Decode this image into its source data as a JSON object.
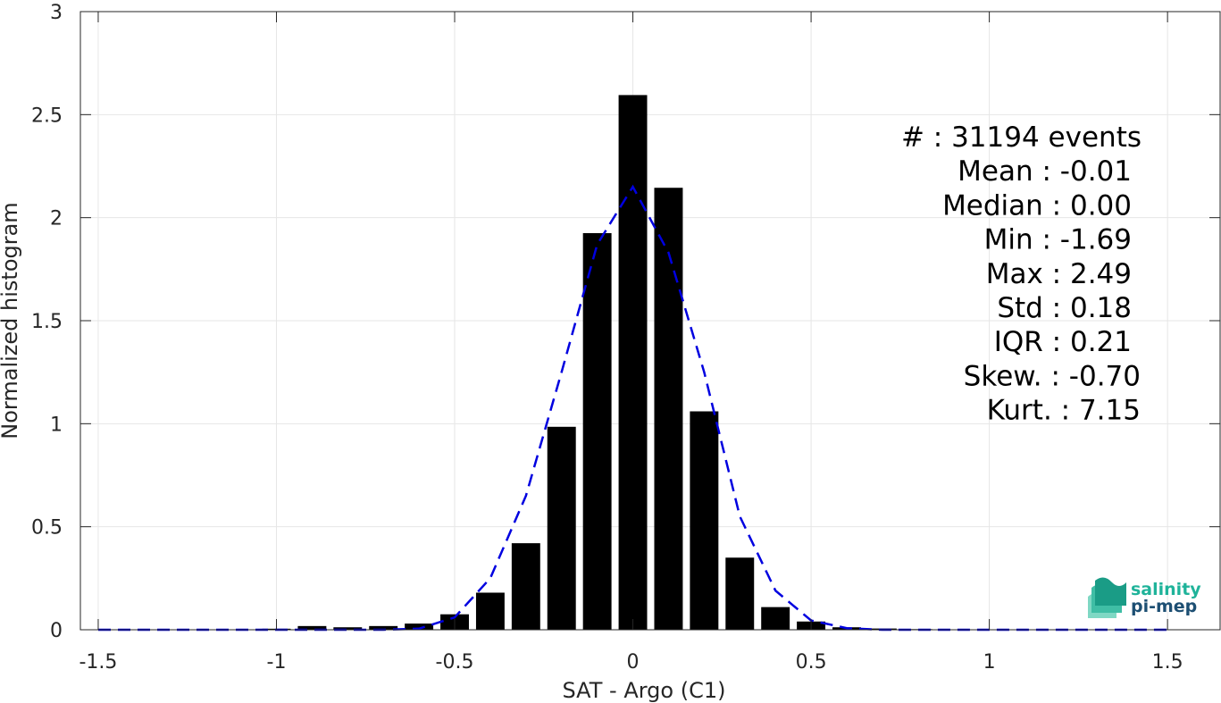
{
  "chart_data": {
    "type": "bar",
    "title": "",
    "xlabel": "SAT - Argo (C1)",
    "ylabel": "Normalized histogram",
    "xlim": [
      -1.55,
      1.65
    ],
    "ylim": [
      0,
      3
    ],
    "xticks": [
      -1.5,
      -1,
      -0.5,
      0,
      0.5,
      1,
      1.5
    ],
    "xtick_labels": [
      "-1.5",
      "-1",
      "-0.5",
      "0",
      "0.5",
      "1",
      "1.5"
    ],
    "yticks": [
      0,
      0.5,
      1,
      1.5,
      2,
      2.5,
      3
    ],
    "ytick_labels": [
      "0",
      "0.5",
      "1",
      "1.5",
      "2",
      "2.5",
      "3"
    ],
    "grid": true,
    "bar_width": 0.08,
    "bins": [
      -1.5,
      -1.4,
      -1.3,
      -1.2,
      -1.1,
      -1.0,
      -0.9,
      -0.8,
      -0.7,
      -0.6,
      -0.5,
      -0.4,
      -0.3,
      -0.2,
      -0.1,
      0.0,
      0.1,
      0.2,
      0.3,
      0.4,
      0.5,
      0.6,
      0.7,
      0.8,
      0.9,
      1.0,
      1.1,
      1.2,
      1.3,
      1.4,
      1.5
    ],
    "values": [
      0.0,
      0.0,
      0.0,
      0.0,
      0.0,
      0.005,
      0.018,
      0.012,
      0.018,
      0.03,
      0.075,
      0.18,
      0.42,
      0.985,
      1.925,
      2.595,
      2.145,
      1.06,
      0.35,
      0.11,
      0.04,
      0.012,
      0.006,
      0.003,
      0.002,
      0.002,
      0.001,
      0.001,
      0.001,
      0.001,
      0.002
    ],
    "fit": {
      "x": [
        -1.5,
        -1.4,
        -1.3,
        -1.2,
        -1.1,
        -1.0,
        -0.9,
        -0.8,
        -0.7,
        -0.6,
        -0.5,
        -0.4,
        -0.3,
        -0.2,
        -0.1,
        0.0,
        0.1,
        0.2,
        0.3,
        0.4,
        0.5,
        0.6,
        0.7,
        0.8,
        0.9,
        1.0,
        1.1,
        1.2,
        1.3,
        1.4,
        1.5
      ],
      "y": [
        0.0,
        0.0,
        0.0,
        0.0,
        0.0,
        0.0,
        0.0,
        0.0,
        0.0,
        0.005,
        0.06,
        0.25,
        0.65,
        1.25,
        1.87,
        2.15,
        1.83,
        1.25,
        0.55,
        0.19,
        0.045,
        0.008,
        0.0,
        0.0,
        0.0,
        0.0,
        0.0,
        0.0,
        0.0,
        0.0,
        0.0
      ],
      "color": "#0000e0"
    },
    "bar_color": "#000000",
    "stats": [
      "#  : 31194 events",
      "Mean : -0.01",
      "Median : 0.00",
      "Min : -1.69",
      "Max : 2.49",
      "Std : 0.18",
      "IQR : 0.21",
      "Skew. : -0.70",
      "Kurt. : 7.15"
    ]
  },
  "logo": {
    "line1": "salinity",
    "line2": "pi-mep",
    "color_line1": "#1fb39a",
    "color_line2": "#1d4f73"
  }
}
